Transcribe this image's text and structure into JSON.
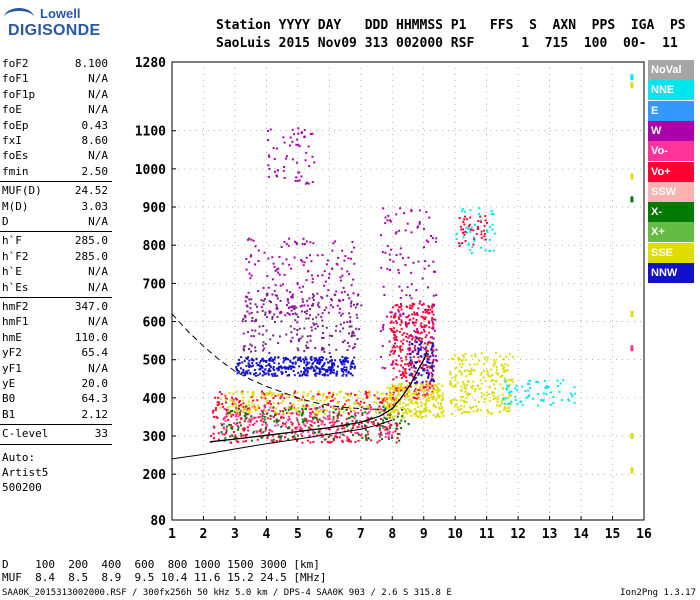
{
  "logo": {
    "top": "Lowell",
    "bottom": "DIGISONDE"
  },
  "header": {
    "line1": "Station YYYY DAY   DDD HHMMSS P1   FFS  S  AXN  PPS  IGA  PS",
    "line2": "SaoLuis 2015 Nov09 313 002000 RSF      1  715  100  00-  11"
  },
  "params_groups": [
    [
      [
        "foF2",
        "8.100"
      ],
      [
        "foF1",
        "N/A"
      ],
      [
        "foF1p",
        "N/A"
      ],
      [
        "foE",
        "N/A"
      ],
      [
        "foEp",
        "0.43"
      ],
      [
        "fxI",
        "8.60"
      ],
      [
        "foEs",
        "N/A"
      ],
      [
        "fmin",
        "2.50"
      ]
    ],
    [
      [
        "MUF(D)",
        "24.52"
      ],
      [
        "M(D)",
        "3.03"
      ],
      [
        "D",
        "N/A"
      ]
    ],
    [
      [
        "h`F",
        "285.0"
      ],
      [
        "h`F2",
        "285.0"
      ],
      [
        "h`E",
        "N/A"
      ],
      [
        "h`Es",
        "N/A"
      ]
    ],
    [
      [
        "hmF2",
        "347.0"
      ],
      [
        "hmF1",
        "N/A"
      ],
      [
        "hmE",
        "110.0"
      ],
      [
        "yF2",
        "65.4"
      ],
      [
        "yF1",
        "N/A"
      ],
      [
        "yE",
        "20.0"
      ],
      [
        "B0",
        "64.3"
      ],
      [
        "B1",
        "2.12"
      ]
    ],
    [
      [
        "C-level",
        "33"
      ]
    ]
  ],
  "auto_block": [
    "Auto:",
    "Artist5",
    "500200"
  ],
  "legend": [
    {
      "label": "NoVal",
      "color": "#a6a6a6"
    },
    {
      "label": "NNE",
      "color": "#00e5ee"
    },
    {
      "label": "E",
      "color": "#3399ff"
    },
    {
      "label": "W",
      "color": "#aa00aa"
    },
    {
      "label": "Vo-",
      "color": "#ff3399"
    },
    {
      "label": "Vo+",
      "color": "#ff0033"
    },
    {
      "label": "SSW",
      "color": "#ffb0b0"
    },
    {
      "label": "X-",
      "color": "#007a00"
    },
    {
      "label": "X+",
      "color": "#66bb44"
    },
    {
      "label": "SSE",
      "color": "#dddd00"
    },
    {
      "label": "NNW",
      "color": "#1111cc"
    }
  ],
  "bottom": {
    "d_line": "D    100  200  400  600  800 1000 1500 3000 [km]",
    "muf_line": "MUF  8.4  8.5  8.9  9.5 10.4 11.6 15.2 24.5 [MHz]"
  },
  "footer": {
    "left": "SAA0K_2015313002000.RSF / 300fx256h 50 kHz 5.0 km / DPS-4 SAA0K 903 / 2.6 S 315.8 E",
    "right": "Ion2Png 1.3.17"
  },
  "chart_data": {
    "type": "scatter",
    "x_ticks": [
      "1",
      "2",
      "3",
      "4",
      "5",
      "6",
      "7",
      "8",
      "9",
      "10",
      "11",
      "12",
      "13",
      "14",
      "15",
      "16"
    ],
    "y_ticks": [
      "80",
      "200",
      "300",
      "400",
      "500",
      "600",
      "700",
      "800",
      "900",
      "1000",
      "1100",
      "1280"
    ],
    "xlim": [
      1,
      16
    ],
    "ylim": [
      80,
      1280
    ],
    "trace_upper_dashed": [
      [
        1.0,
        620
      ],
      [
        1.5,
        575
      ],
      [
        2.0,
        535
      ],
      [
        2.5,
        500
      ],
      [
        3.0,
        470
      ],
      [
        3.5,
        448
      ],
      [
        4.0,
        430
      ],
      [
        4.5,
        415
      ],
      [
        5.0,
        400
      ],
      [
        5.5,
        388
      ],
      [
        6.0,
        380
      ],
      [
        6.5,
        375
      ],
      [
        7.0,
        372
      ],
      [
        7.5,
        370
      ],
      [
        7.8,
        368
      ]
    ],
    "trace_lower_solid": [
      [
        1.0,
        240
      ],
      [
        2.0,
        252
      ],
      [
        3.0,
        266
      ],
      [
        4.0,
        280
      ],
      [
        5.0,
        292
      ],
      [
        6.0,
        305
      ],
      [
        7.0,
        318
      ],
      [
        7.5,
        328
      ],
      [
        8.0,
        342
      ]
    ],
    "trace_profile_solid": [
      [
        2.2,
        285
      ],
      [
        3.0,
        292
      ],
      [
        4.0,
        302
      ],
      [
        5.0,
        312
      ],
      [
        6.0,
        322
      ],
      [
        7.0,
        336
      ],
      [
        7.6,
        352
      ],
      [
        8.0,
        372
      ],
      [
        8.3,
        402
      ],
      [
        8.6,
        438
      ],
      [
        8.8,
        470
      ],
      [
        9.0,
        500
      ],
      [
        9.1,
        520
      ]
    ],
    "clusters": [
      {
        "color": "#1111cc",
        "x": [
          3.0,
          6.8
        ],
        "y": [
          460,
          510
        ],
        "n": 360
      },
      {
        "color": "#7a1f8f",
        "x": [
          3.2,
          7.0
        ],
        "y": [
          520,
          680
        ],
        "n": 220
      },
      {
        "color": "#ff0033",
        "x": [
          2.2,
          8.2
        ],
        "y": [
          285,
          420
        ],
        "n": 420
      },
      {
        "color": "#ff0033",
        "x": [
          7.9,
          9.3
        ],
        "y": [
          400,
          650
        ],
        "n": 320
      },
      {
        "color": "#ff3399",
        "x": [
          2.5,
          8.0
        ],
        "y": [
          300,
          380
        ],
        "n": 200
      },
      {
        "color": "#dddd00",
        "x": [
          2.5,
          8.0
        ],
        "y": [
          360,
          420
        ],
        "n": 200
      },
      {
        "color": "#dddd00",
        "x": [
          7.8,
          9.6
        ],
        "y": [
          350,
          440
        ],
        "n": 260
      },
      {
        "color": "#dddd00",
        "x": [
          9.8,
          11.8
        ],
        "y": [
          360,
          520
        ],
        "n": 240
      },
      {
        "color": "#007a00",
        "x": [
          2.5,
          8.5
        ],
        "y": [
          290,
          380
        ],
        "n": 160
      },
      {
        "color": "#aa00aa",
        "x": [
          3.3,
          6.8
        ],
        "y": [
          620,
          820
        ],
        "n": 170
      },
      {
        "color": "#aa00aa",
        "x": [
          4.0,
          5.6
        ],
        "y": [
          960,
          1110
        ],
        "n": 60
      },
      {
        "color": "#aa00aa",
        "x": [
          7.6,
          9.4
        ],
        "y": [
          480,
          900
        ],
        "n": 140
      },
      {
        "color": "#00e5ee",
        "x": [
          11.5,
          13.8
        ],
        "y": [
          380,
          450
        ],
        "n": 70
      },
      {
        "color": "#00e5ee",
        "x": [
          10.0,
          11.3
        ],
        "y": [
          780,
          900
        ],
        "n": 45
      },
      {
        "color": "#ff0033",
        "x": [
          10.0,
          11.0
        ],
        "y": [
          800,
          880
        ],
        "n": 40
      },
      {
        "color": "#1111cc",
        "x": [
          8.5,
          9.3
        ],
        "y": [
          440,
          560
        ],
        "n": 70
      }
    ],
    "markers": [
      {
        "color": "#dddd00",
        "x": 15.6,
        "y": 1220
      },
      {
        "color": "#00e5ee",
        "x": 15.6,
        "y": 1240
      },
      {
        "color": "#dddd00",
        "x": 15.6,
        "y": 980
      },
      {
        "color": "#dddd00",
        "x": 15.6,
        "y": 620
      },
      {
        "color": "#dddd00",
        "x": 15.6,
        "y": 300
      },
      {
        "color": "#ff3399",
        "x": 15.6,
        "y": 530
      },
      {
        "color": "#dddd00",
        "x": 15.6,
        "y": 210
      },
      {
        "color": "#007a00",
        "x": 15.6,
        "y": 920
      }
    ]
  }
}
